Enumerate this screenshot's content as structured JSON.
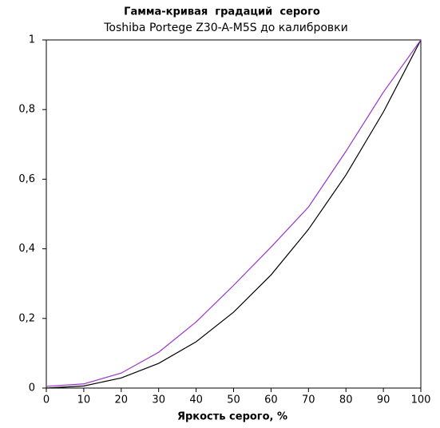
{
  "chart_data": {
    "type": "line",
    "title": "Гамма-кривая  градаций  серого",
    "subtitle": "Toshiba Portege Z30-A-M5S до калибровки",
    "x_label": "Яркость серого, %",
    "x": [
      0,
      10,
      20,
      30,
      40,
      50,
      60,
      70,
      80,
      90,
      100
    ],
    "series": [
      {
        "color": "#000000",
        "values": [
          0,
          0.006,
          0.029,
          0.071,
          0.133,
          0.218,
          0.325,
          0.456,
          0.612,
          0.793,
          1
        ]
      },
      {
        "color": "#9933cc",
        "values": [
          0.005,
          0.012,
          0.043,
          0.103,
          0.19,
          0.295,
          0.405,
          0.52,
          0.68,
          0.85,
          1
        ]
      }
    ],
    "xlim": [
      0,
      100
    ],
    "xticks": [
      0,
      10,
      20,
      30,
      40,
      50,
      60,
      70,
      80,
      90,
      100
    ],
    "ylim": [
      0,
      1
    ],
    "yticks": [
      0,
      {
        "value": 0.2,
        "label": "0,2"
      },
      {
        "value": 0.4,
        "label": "0,4"
      },
      {
        "value": 0.6,
        "label": "0,6"
      },
      {
        "value": 0.8,
        "label": "0,8"
      },
      1
    ]
  }
}
